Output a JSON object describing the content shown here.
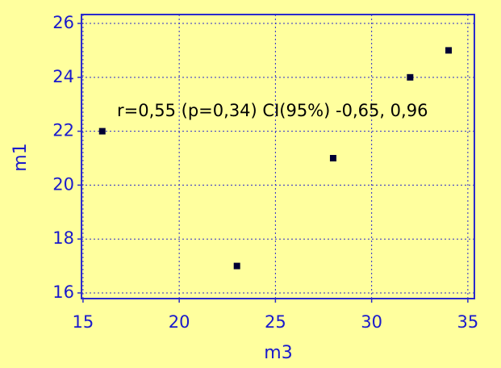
{
  "chart_data": {
    "type": "scatter",
    "annotation": "r=0,55 (p=0,34) CI(95%) -0,65, 0,96",
    "x_label": "m3",
    "y_label": "m1",
    "x": [
      16,
      23,
      28,
      32,
      34
    ],
    "values": [
      22,
      17,
      21,
      24,
      25
    ],
    "color": "#000033",
    "xlim": [
      14.92,
      35.34
    ],
    "xticks": [
      15,
      20,
      25,
      30,
      35
    ],
    "ylim": [
      15.79,
      26.33
    ],
    "yticks": [
      16,
      18,
      20,
      22,
      24,
      26
    ],
    "grid": true
  }
}
